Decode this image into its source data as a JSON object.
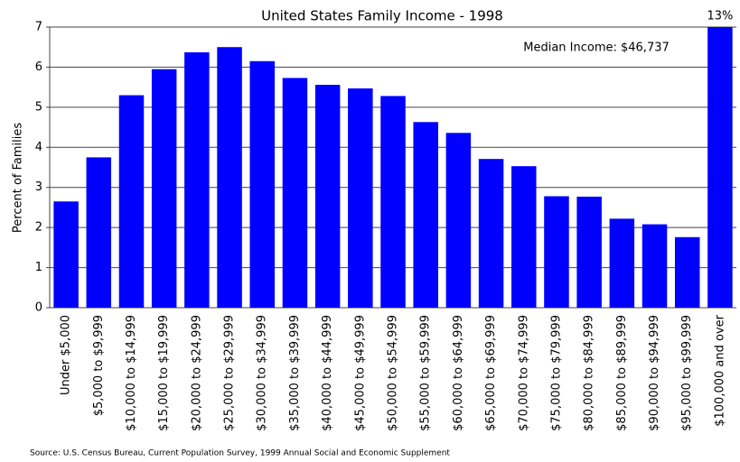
{
  "chart_data": {
    "type": "bar",
    "title": "United States Family Income - 1998",
    "annotation": "Median Income: $46,737",
    "y_label": "Percent of Families",
    "source": "Source: U.S. Census Bureau, Current Population Survey, 1999 Annual Social and Economic Supplement",
    "categories": [
      "Under $5,000",
      "$5,000 to $9,999",
      "$10,000 to $14,999",
      "$15,000 to $19,999",
      "$20,000 to $24,999",
      "$25,000 to $29,999",
      "$30,000 to $34,999",
      "$35,000 to $39,999",
      "$40,000 to $44,999",
      "$45,000 to $49,999",
      "$50,000 to $54,999",
      "$55,000 to $59,999",
      "$60,000 to $64,999",
      "$65,000 to $69,999",
      "$70,000 to $74,999",
      "$75,000 to $79,999",
      "$80,000 to $84,999",
      "$85,000 to $89,999",
      "$90,000 to $94,999",
      "$95,000 to $99,999",
      "$100,000 and over"
    ],
    "values": [
      2.65,
      3.75,
      5.3,
      5.95,
      6.37,
      6.5,
      6.15,
      5.73,
      5.56,
      5.47,
      5.28,
      4.63,
      4.36,
      3.71,
      3.53,
      2.78,
      2.77,
      2.22,
      2.08,
      1.76,
      13
    ],
    "value_labels": [
      null,
      null,
      null,
      null,
      null,
      null,
      null,
      null,
      null,
      null,
      null,
      null,
      null,
      null,
      null,
      null,
      null,
      null,
      null,
      null,
      "13%"
    ],
    "color": "#0000ff",
    "ylim": [
      0,
      7
    ],
    "yticks": [
      0,
      1,
      2,
      3,
      4,
      5,
      6,
      7
    ],
    "grid": true
  }
}
